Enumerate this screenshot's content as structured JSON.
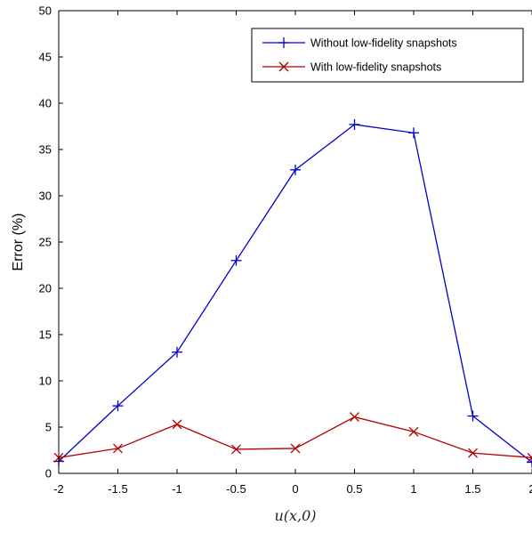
{
  "chart_data": {
    "type": "line",
    "title": "",
    "xlabel": "u(x,0)",
    "ylabel": "Error (%)",
    "xlim": [
      -2,
      2
    ],
    "ylim": [
      0,
      50
    ],
    "xticks": [
      -2,
      -1.5,
      -1,
      -0.5,
      0,
      0.5,
      1,
      1.5,
      2
    ],
    "xtick_labels": [
      "-2",
      "-1.5",
      "-1",
      "-0.5",
      "0",
      "0.5",
      "1",
      "1.5",
      "2"
    ],
    "yticks": [
      0,
      5,
      10,
      15,
      20,
      25,
      30,
      35,
      40,
      45,
      50
    ],
    "ytick_labels": [
      "0",
      "5",
      "10",
      "15",
      "20",
      "25",
      "30",
      "35",
      "40",
      "45",
      "50"
    ],
    "grid": false,
    "legend_position": "top-right",
    "series": [
      {
        "name": "Without low-fidelity snapshots",
        "color": "#0000cc",
        "marker": "plus",
        "x": [
          -2,
          -1.5,
          -1,
          -0.5,
          0,
          0.5,
          1,
          1.5,
          2
        ],
        "y": [
          1.3,
          7.3,
          13.1,
          23.0,
          32.8,
          37.7,
          36.8,
          6.2,
          1.2
        ]
      },
      {
        "name": "With low-fidelity snapshots",
        "color": "#b30000",
        "marker": "x",
        "x": [
          -2,
          -1.5,
          -1,
          -0.5,
          0,
          0.5,
          1,
          1.5,
          2
        ],
        "y": [
          1.7,
          2.7,
          5.3,
          2.6,
          2.7,
          6.1,
          4.5,
          2.2,
          1.7
        ]
      }
    ]
  }
}
